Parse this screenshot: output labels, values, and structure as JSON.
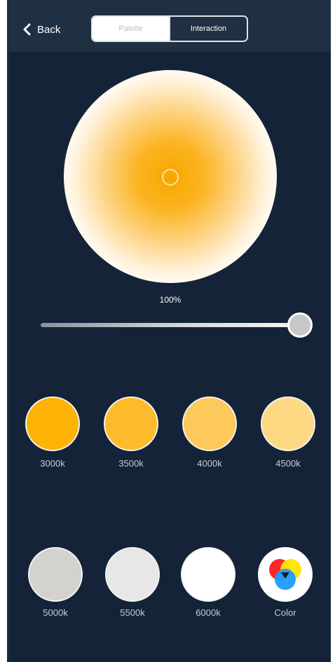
{
  "header": {
    "back_label": "Back",
    "tabs": [
      {
        "label": "Palette",
        "active": true
      },
      {
        "label": "Interaction",
        "active": false
      }
    ]
  },
  "brightness": {
    "value_text": "100%",
    "value": 100
  },
  "presets": [
    {
      "label": "3000k",
      "color": "#fdb206"
    },
    {
      "label": "3500k",
      "color": "#fdbb2b"
    },
    {
      "label": "4000k",
      "color": "#fdc95a"
    },
    {
      "label": "4500k",
      "color": "#fdd983"
    },
    {
      "label": "5000k",
      "color": "#d4d2cf"
    },
    {
      "label": "5500k",
      "color": "#e7e7e7"
    },
    {
      "label": "6000k",
      "color": "#ffffff"
    },
    {
      "label": "Color",
      "color": "multicolor"
    }
  ],
  "colors": {
    "background": "#142337",
    "topbar": "#1f3042",
    "accent": "#f8a600"
  }
}
